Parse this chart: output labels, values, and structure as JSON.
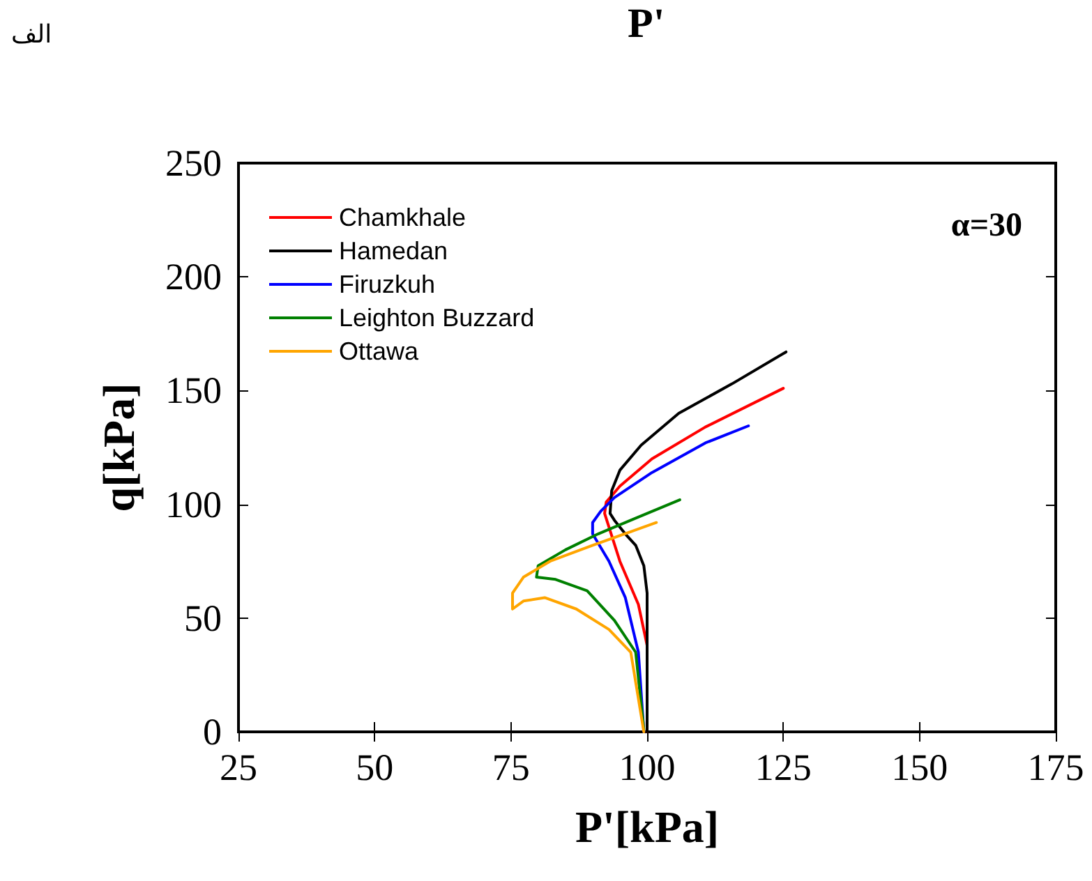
{
  "chart_data": {
    "type": "line",
    "xlabel": "P'[kPa]",
    "ylabel": "q[kPa]",
    "annotations": [
      "α=30",
      "الف",
      "P'"
    ],
    "xlim": [
      25,
      175
    ],
    "ylim": [
      0,
      250
    ],
    "xticks": [
      25,
      50,
      75,
      100,
      125,
      150,
      175
    ],
    "yticks": [
      0,
      50,
      100,
      150,
      200,
      250
    ],
    "legend": "top left",
    "grid": false,
    "marker": "none",
    "line_style": "solid",
    "series": [
      {
        "name": "Chamkhale",
        "color": "#ff0000",
        "x": [
          100,
          100,
          98.4,
          95,
          92.2,
          92.5,
          95,
          100.9,
          110.7,
          125
        ],
        "values": [
          0,
          38,
          56,
          75,
          96,
          101,
          108,
          120,
          134,
          151
        ]
      },
      {
        "name": "Hamedan",
        "color": "#000000",
        "x": [
          100,
          100,
          99.4,
          97.9,
          96,
          94,
          93.2,
          93.5,
          95,
          98.9,
          105.8,
          115.6,
          125.5
        ],
        "values": [
          0,
          61,
          73,
          82,
          87,
          93,
          96,
          106,
          115,
          126,
          140,
          153,
          167
        ]
      },
      {
        "name": "Firuzkuh",
        "color": "#0000ff",
        "x": [
          99.4,
          98.4,
          96,
          93,
          90,
          90,
          91.5,
          94,
          100.9,
          110.7,
          118.6
        ],
        "values": [
          0,
          35,
          59,
          75,
          87,
          92,
          97,
          103,
          114,
          127,
          134.5
        ]
      },
      {
        "name": "Leighton Buzzard",
        "color": "#008000",
        "x": [
          99.4,
          97.9,
          94,
          89,
          83.2,
          79.7,
          80,
          85,
          91,
          98,
          106
        ],
        "values": [
          1,
          35,
          49,
          62,
          67,
          68,
          73,
          80,
          87,
          94,
          102
        ]
      },
      {
        "name": "Ottawa",
        "color": "#ffa500",
        "x": [
          99.4,
          97,
          93,
          87,
          81.2,
          77.3,
          75.3,
          75.3,
          77.3,
          82.2,
          90,
          97,
          101.7
        ],
        "values": [
          0,
          35,
          45,
          54,
          59,
          57.5,
          54,
          61,
          68,
          75,
          82,
          88,
          92
        ]
      }
    ]
  }
}
